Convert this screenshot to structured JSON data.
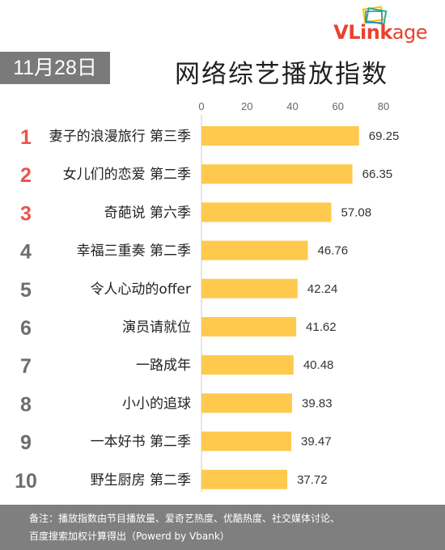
{
  "brand": {
    "logo_v": "VL",
    "logo_link": "ink",
    "logo_age": "age"
  },
  "date": "11月28日",
  "title": "网络综艺播放指数",
  "footer": {
    "line1": "备注：播放指数由节目播放量、爱奇艺热度、优酷热度、社交媒体讨论、",
    "line2": "百度搜索加权计算得出（Powerd by Vbank）"
  },
  "colors": {
    "bar": "#ffc94d",
    "rank_top": "#e8554e",
    "rank_other": "#6e6e6e",
    "badge": "#7a7a7a"
  },
  "chart_data": {
    "type": "bar",
    "orientation": "horizontal",
    "ranks": [
      "1",
      "2",
      "3",
      "4",
      "5",
      "6",
      "7",
      "8",
      "9",
      "10"
    ],
    "categories": [
      "妻子的浪漫旅行 第三季",
      "女儿们的恋爱 第二季",
      "奇葩说 第六季",
      "幸福三重奏 第二季",
      "令人心动的offer",
      "演员请就位",
      "一路成年",
      "小小的追球",
      "一本好书 第二季",
      "野生厨房 第二季"
    ],
    "values": [
      69.25,
      66.35,
      57.08,
      46.76,
      42.24,
      41.62,
      40.48,
      39.83,
      39.47,
      37.72
    ],
    "value_labels": [
      "69.25",
      "66.35",
      "57.08",
      "46.76",
      "42.24",
      "41.62",
      "40.48",
      "39.83",
      "39.47",
      "37.72"
    ],
    "xticks": [
      "0",
      "20",
      "40",
      "60",
      "80"
    ],
    "xlim": [
      0,
      80
    ],
    "axis_position": "top",
    "grid": false
  }
}
